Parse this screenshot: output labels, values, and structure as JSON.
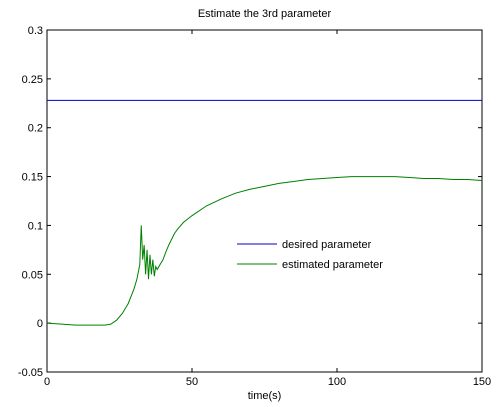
{
  "chart_data": {
    "type": "line",
    "title": "Estimate the 3rd parameter",
    "xlabel": "time(s)",
    "ylabel": "",
    "xlim": [
      0,
      150
    ],
    "ylim": [
      -0.05,
      0.3
    ],
    "xticks": [
      "0",
      "50",
      "100",
      "150"
    ],
    "yticks": [
      "-0.05",
      "0",
      "0.05",
      "0.1",
      "0.15",
      "0.2",
      "0.25",
      "0.3"
    ],
    "grid": false,
    "legend_position": "center-right",
    "series": [
      {
        "name": "desired parameter",
        "color": "#0000cc",
        "x": [
          0,
          150
        ],
        "y": [
          0.228,
          0.228
        ]
      },
      {
        "name": "estimated parameter",
        "color": "#008000",
        "x": [
          0,
          5,
          10,
          15,
          20,
          22,
          24,
          26,
          28,
          30,
          31,
          32,
          32.5,
          33,
          33.5,
          34,
          34.5,
          35,
          35.5,
          36,
          36.5,
          37,
          37.5,
          38,
          39,
          40,
          41,
          42,
          43,
          44,
          45,
          47,
          50,
          55,
          60,
          65,
          70,
          75,
          80,
          85,
          90,
          95,
          100,
          105,
          110,
          115,
          120,
          125,
          130,
          135,
          140,
          145,
          150
        ],
        "y": [
          0.0,
          -0.001,
          -0.002,
          -0.002,
          -0.002,
          -0.001,
          0.003,
          0.01,
          0.02,
          0.035,
          0.045,
          0.06,
          0.1,
          0.065,
          0.08,
          0.05,
          0.075,
          0.045,
          0.07,
          0.05,
          0.065,
          0.048,
          0.058,
          0.055,
          0.06,
          0.065,
          0.073,
          0.08,
          0.086,
          0.092,
          0.096,
          0.103,
          0.11,
          0.12,
          0.127,
          0.133,
          0.137,
          0.14,
          0.143,
          0.145,
          0.147,
          0.148,
          0.149,
          0.15,
          0.15,
          0.15,
          0.15,
          0.149,
          0.148,
          0.148,
          0.147,
          0.147,
          0.146
        ]
      }
    ]
  }
}
